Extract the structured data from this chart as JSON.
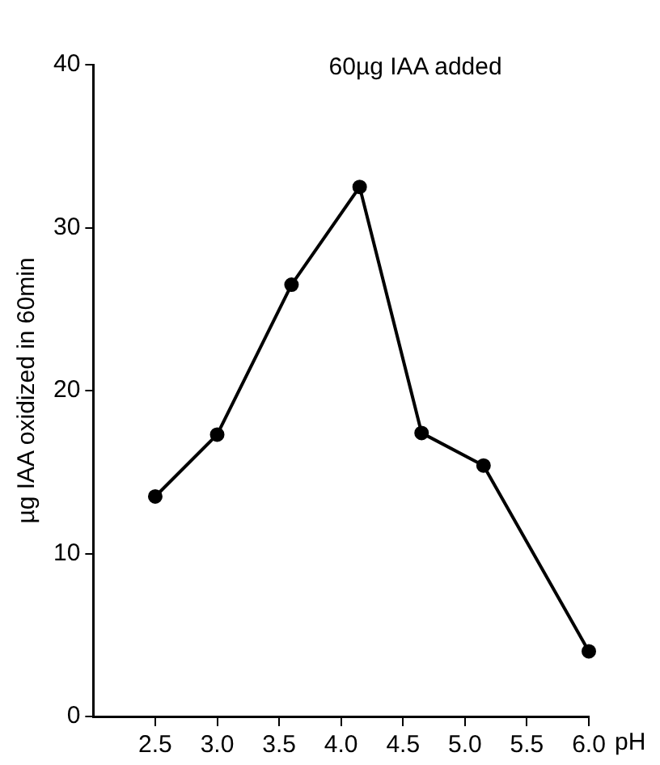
{
  "chart_data": {
    "type": "line",
    "xlabel": "pH",
    "ylabel": "µg IAA oxidized in 60min",
    "annotations": [
      "60µg IAA added"
    ],
    "x": [
      2.5,
      3.0,
      3.6,
      4.15,
      4.65,
      5.15,
      6.0
    ],
    "series": [
      {
        "color": "#000000",
        "values": [
          13.5,
          17.3,
          26.5,
          32.5,
          17.4,
          15.4,
          4.0
        ]
      }
    ],
    "xlim": [
      2.0,
      6.0
    ],
    "xticks": [
      {
        "value": 2.5,
        "label": "2.5"
      },
      {
        "value": 3.0,
        "label": "3.0"
      },
      {
        "value": 3.5,
        "label": "3.5"
      },
      {
        "value": 4.0,
        "label": "4.0"
      },
      {
        "value": 4.5,
        "label": "4.5"
      },
      {
        "value": 5.0,
        "label": "5.0"
      },
      {
        "value": 5.5,
        "label": "5.5"
      },
      {
        "value": 6.0,
        "label": "6.0"
      }
    ],
    "ylim": [
      0,
      40
    ],
    "yticks": [
      0,
      10,
      20,
      30,
      40
    ],
    "grid": false,
    "legend": false,
    "marker": "circle",
    "line_style": "solid"
  }
}
